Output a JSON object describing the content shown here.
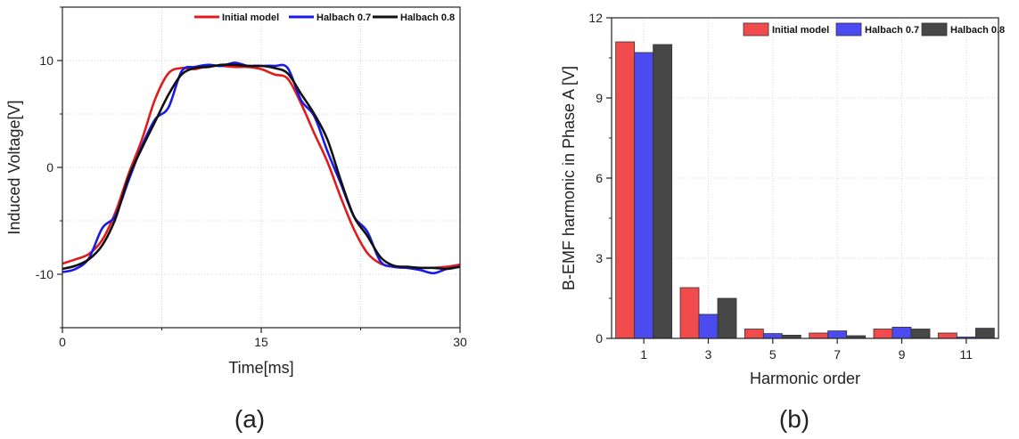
{
  "chart_data": [
    {
      "type": "line",
      "panel_label": "(a)",
      "xlabel": "Time[ms]",
      "ylabel": "Induced Voltage[V]",
      "xlim": [
        0,
        30
      ],
      "ylim": [
        -15,
        15
      ],
      "xticks": [
        "0",
        "15",
        "30"
      ],
      "yticks": [
        "-10",
        "0",
        "10"
      ],
      "grid": true,
      "legend_position": "top-right",
      "series": [
        {
          "name": "Initial model",
          "color": "#e11b1b",
          "x": [
            0,
            1,
            2,
            3,
            4,
            5,
            6,
            7,
            8,
            9,
            10,
            11,
            12,
            13,
            14,
            15,
            16,
            17,
            18,
            19,
            20,
            21,
            22,
            23,
            24,
            25,
            26,
            27,
            28,
            29,
            30
          ],
          "y": [
            -9.0,
            -8.6,
            -8.1,
            -6.8,
            -4.2,
            -0.6,
            2.6,
            6.4,
            8.8,
            9.3,
            9.2,
            9.5,
            9.5,
            9.4,
            9.4,
            9.2,
            8.7,
            8.3,
            6.0,
            3.2,
            0.5,
            -2.8,
            -5.8,
            -8.0,
            -9.0,
            -9.3,
            -9.4,
            -9.4,
            -9.4,
            -9.3,
            -9.1
          ]
        },
        {
          "name": "Halbach 0.7",
          "color": "#1a1ae6",
          "x": [
            0,
            1,
            2,
            3,
            4,
            5,
            6,
            7,
            8,
            9,
            10,
            11,
            12,
            13,
            14,
            15,
            16,
            17,
            18,
            19,
            20,
            21,
            22,
            23,
            24,
            25,
            26,
            27,
            28,
            29,
            30
          ],
          "y": [
            -9.8,
            -9.5,
            -8.5,
            -5.7,
            -4.5,
            -1.2,
            2.0,
            4.5,
            5.6,
            9.0,
            9.4,
            9.6,
            9.5,
            9.8,
            9.5,
            9.5,
            9.5,
            9.3,
            6.3,
            4.8,
            1.5,
            -1.5,
            -4.6,
            -6.0,
            -8.8,
            -9.3,
            -9.4,
            -9.6,
            -9.9,
            -9.5,
            -9.3
          ]
        },
        {
          "name": "Halbach 0.8",
          "color": "#111111",
          "x": [
            0,
            1,
            2,
            3,
            4,
            5,
            6,
            7,
            8,
            9,
            10,
            11,
            12,
            13,
            14,
            15,
            16,
            17,
            18,
            19,
            20,
            21,
            22,
            23,
            24,
            25,
            26,
            27,
            28,
            29,
            30
          ],
          "y": [
            -9.5,
            -9.2,
            -8.6,
            -7.3,
            -4.8,
            -0.9,
            1.8,
            4.3,
            6.8,
            8.7,
            9.3,
            9.4,
            9.6,
            9.6,
            9.5,
            9.5,
            9.3,
            8.8,
            6.9,
            5.0,
            2.6,
            -1.2,
            -4.6,
            -6.4,
            -8.4,
            -9.2,
            -9.3,
            -9.4,
            -9.4,
            -9.5,
            -9.3
          ]
        }
      ]
    },
    {
      "type": "bar",
      "panel_label": "(b)",
      "xlabel": "Harmonic order",
      "ylabel": "B-EMF harmonic in Phase A [V]",
      "categories": [
        "1",
        "3",
        "5",
        "7",
        "9",
        "11"
      ],
      "ylim": [
        0,
        12
      ],
      "yticks": [
        "0",
        "3",
        "6",
        "9",
        "12"
      ],
      "grid": true,
      "legend_position": "top-right",
      "series": [
        {
          "name": "Initial model",
          "color": "#f24b4e",
          "values": [
            11.1,
            1.9,
            0.35,
            0.2,
            0.35,
            0.2
          ]
        },
        {
          "name": "Halbach 0.7",
          "color": "#4b4bf0",
          "values": [
            10.7,
            0.9,
            0.18,
            0.28,
            0.42,
            0.05
          ]
        },
        {
          "name": "Halbach 0.8",
          "color": "#474747",
          "values": [
            11.0,
            1.5,
            0.12,
            0.1,
            0.35,
            0.38
          ]
        }
      ]
    }
  ]
}
